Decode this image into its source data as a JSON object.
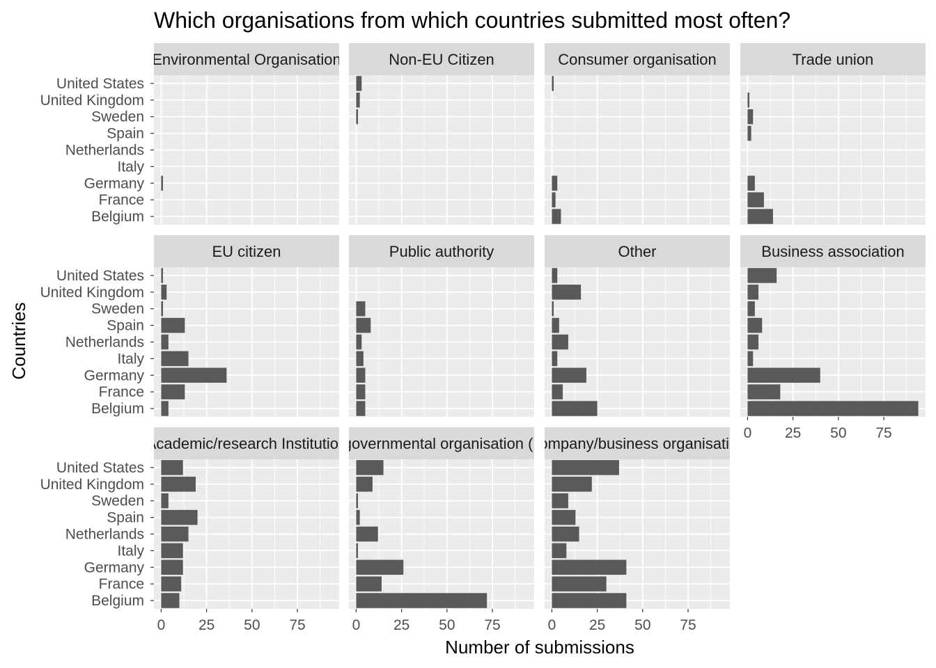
{
  "chart_data": {
    "type": "bar",
    "orientation": "horizontal",
    "title": "Which organisations from which countries submitted most often?",
    "xlabel": "Number of submissions",
    "ylabel": "Countries",
    "categories": [
      "Belgium",
      "France",
      "Germany",
      "Italy",
      "Netherlands",
      "Spain",
      "Sweden",
      "United Kingdom",
      "United States"
    ],
    "xlim": [
      -4,
      98
    ],
    "x_ticks": [
      "0",
      "25",
      "50",
      "75"
    ],
    "x_tick_values": [
      0,
      25,
      50,
      75
    ],
    "grid": true,
    "facet_layout": "wrap, 4 columns, 3 rows, free x axis labels on bottom row",
    "colors": {
      "bar": "#595959",
      "panel": "#ebebeb",
      "strip": "#d9d9d9",
      "grid": "#ffffff"
    },
    "facets": [
      {
        "label": "Environmental Organisation",
        "values": [
          0,
          0,
          1,
          0,
          0,
          0,
          0,
          0,
          0
        ]
      },
      {
        "label": "Non-EU Citizen",
        "values": [
          0,
          0,
          0,
          0,
          0,
          0,
          1,
          2,
          3
        ]
      },
      {
        "label": "Consumer organisation",
        "values": [
          5,
          2,
          3,
          0,
          0,
          0,
          0,
          0,
          1
        ]
      },
      {
        "label": "Trade union",
        "values": [
          14,
          9,
          4,
          0,
          0,
          2,
          3,
          1,
          0
        ]
      },
      {
        "label": "EU citizen",
        "values": [
          4,
          13,
          36,
          15,
          4,
          13,
          1,
          3,
          1
        ]
      },
      {
        "label": "Public authority",
        "values": [
          5,
          5,
          5,
          4,
          3,
          8,
          5,
          0,
          0
        ]
      },
      {
        "label": "Other",
        "values": [
          25,
          6,
          19,
          3,
          9,
          4,
          1,
          16,
          3
        ]
      },
      {
        "label": "Business association",
        "values": [
          94,
          18,
          40,
          3,
          6,
          8,
          4,
          6,
          16
        ]
      },
      {
        "label": "Academic/research Institution",
        "values": [
          10,
          11,
          12,
          12,
          15,
          20,
          4,
          19,
          12
        ]
      },
      {
        "label": "Non-governmental organisation (NGO)",
        "values": [
          72,
          14,
          26,
          1,
          12,
          2,
          1,
          9,
          15
        ]
      },
      {
        "label": "Company/business organisation",
        "values": [
          41,
          30,
          41,
          8,
          15,
          13,
          9,
          22,
          37
        ]
      }
    ]
  }
}
